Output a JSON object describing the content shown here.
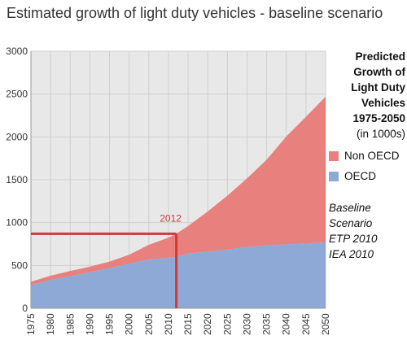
{
  "title": "Estimated growth of light duty vehicles - baseline scenario",
  "legend": {
    "heading_lines": [
      "Predicted",
      "Growth of",
      "Light Duty",
      "Vehicles",
      "1975-2050"
    ],
    "unit": "(in 1000s)",
    "items": [
      {
        "label": "Non OECD",
        "color": "#e8807d"
      },
      {
        "label": "OECD",
        "color": "#8ea9d6"
      }
    ],
    "note_lines": [
      "Baseline",
      "Scenario",
      "ETP 2010",
      "IEA 2010"
    ]
  },
  "colors": {
    "non_oecd": "#e8807d",
    "oecd": "#8ea9d6",
    "marker": "#d03a33",
    "grid": "#cfcfcf",
    "plot_bg": "#e8e8e8"
  },
  "chart_data": {
    "type": "area",
    "stacked": true,
    "x": [
      1975,
      1980,
      1985,
      1990,
      1995,
      2000,
      2005,
      2010,
      2012,
      2015,
      2020,
      2025,
      2030,
      2035,
      2040,
      2045,
      2050
    ],
    "series": [
      {
        "name": "OECD",
        "color": "#8ea9d6",
        "values": [
          270,
          330,
          375,
          420,
          470,
          520,
          570,
          590,
          600,
          640,
          660,
          685,
          715,
          735,
          745,
          755,
          770
        ]
      },
      {
        "name": "Non OECD",
        "color": "#e8807d",
        "values": [
          40,
          50,
          60,
          65,
          75,
          105,
          170,
          235,
          270,
          320,
          470,
          630,
          800,
          1000,
          1260,
          1480,
          1700
        ]
      }
    ],
    "x_ticks": [
      1975,
      1980,
      1985,
      1990,
      1995,
      2000,
      2005,
      2010,
      2015,
      2020,
      2025,
      2030,
      2035,
      2040,
      2045,
      2050
    ],
    "y_ticks": [
      0,
      500,
      1000,
      1500,
      2000,
      2500,
      3000
    ],
    "xlim": [
      1975,
      2050
    ],
    "ylim": [
      0,
      3000
    ],
    "grid": true,
    "annotation": {
      "label": "2012",
      "x": 2012,
      "y": 870
    }
  }
}
